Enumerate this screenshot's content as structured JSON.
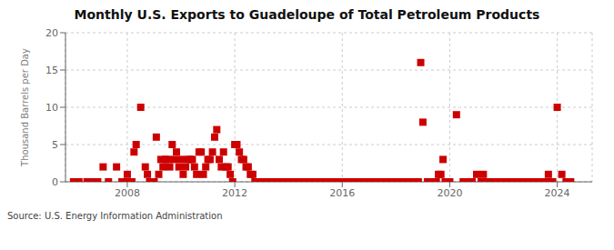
{
  "chart_data": {
    "type": "scatter",
    "title": "Monthly U.S. Exports to Guadeloupe of Total Petroleum Products",
    "y_label": "Thousand Barrels per Day",
    "annotations": [
      "Source: U.S. Energy Information Administration"
    ],
    "color": "#cc0000",
    "marker": "square",
    "grid": true,
    "xlim": [
      2005.7,
      2025.3
    ],
    "ylim": [
      0,
      20
    ],
    "xticks": [
      2008,
      2012,
      2016,
      2020,
      2024
    ],
    "yticks": [
      0,
      5,
      10,
      15,
      20
    ],
    "x": [
      2006.0,
      2006.2,
      2006.5,
      2006.7,
      2006.9,
      2007.1,
      2007.3,
      2007.6,
      2007.8,
      2007.92,
      2008.0,
      2008.08,
      2008.17,
      2008.25,
      2008.33,
      2008.5,
      2008.67,
      2008.75,
      2008.83,
      2008.92,
      2009.0,
      2009.08,
      2009.17,
      2009.25,
      2009.33,
      2009.42,
      2009.5,
      2009.58,
      2009.67,
      2009.75,
      2009.83,
      2009.92,
      2010.0,
      2010.08,
      2010.17,
      2010.25,
      2010.33,
      2010.42,
      2010.5,
      2010.58,
      2010.67,
      2010.75,
      2010.83,
      2010.92,
      2011.0,
      2011.08,
      2011.17,
      2011.25,
      2011.33,
      2011.42,
      2011.5,
      2011.58,
      2011.67,
      2011.75,
      2011.83,
      2011.92,
      2012.0,
      2012.08,
      2012.17,
      2012.25,
      2012.33,
      2012.42,
      2012.5,
      2012.58,
      2012.67,
      2012.75,
      2012.83,
      2012.92,
      2013.0,
      2013.17,
      2013.33,
      2013.5,
      2013.67,
      2013.83,
      2014.0,
      2014.17,
      2014.33,
      2014.5,
      2014.67,
      2014.83,
      2015.0,
      2015.17,
      2015.33,
      2015.5,
      2015.67,
      2015.83,
      2016.0,
      2016.17,
      2016.33,
      2016.5,
      2016.67,
      2016.83,
      2017.0,
      2017.17,
      2017.33,
      2017.5,
      2017.67,
      2017.83,
      2018.0,
      2018.17,
      2018.33,
      2018.5,
      2018.67,
      2018.83,
      2018.92,
      2019.0,
      2019.17,
      2019.33,
      2019.5,
      2019.58,
      2019.67,
      2019.75,
      2019.83,
      2019.92,
      2020.0,
      2020.25,
      2020.5,
      2020.67,
      2020.83,
      2021.0,
      2021.17,
      2021.25,
      2021.33,
      2021.5,
      2021.67,
      2021.83,
      2022.0,
      2022.17,
      2022.33,
      2022.5,
      2022.67,
      2022.83,
      2023.0,
      2023.17,
      2023.33,
      2023.5,
      2023.67,
      2023.75,
      2023.83,
      2024.0,
      2024.17,
      2024.33,
      2024.5
    ],
    "values": [
      0.0,
      0.0,
      0.0,
      0.0,
      0.0,
      2.0,
      0.0,
      2.0,
      0.0,
      0.0,
      1.0,
      0.0,
      0.0,
      4.0,
      5.0,
      10.0,
      2.0,
      1.0,
      0.0,
      0.0,
      0.0,
      6.0,
      1.0,
      3.0,
      2.0,
      3.0,
      3.0,
      2.0,
      5.0,
      3.0,
      4.0,
      2.0,
      3.0,
      1.0,
      2.0,
      3.0,
      3.0,
      3.0,
      2.0,
      1.0,
      4.0,
      4.0,
      1.0,
      2.0,
      3.0,
      3.0,
      4.0,
      6.0,
      7.0,
      3.0,
      2.0,
      4.0,
      2.0,
      2.0,
      1.0,
      0.0,
      5.0,
      5.0,
      4.0,
      3.0,
      3.0,
      2.0,
      2.0,
      1.0,
      1.0,
      0.0,
      0.0,
      0.0,
      0.0,
      0.0,
      0.0,
      0.0,
      0.0,
      0.0,
      0.0,
      0.0,
      0.0,
      0.0,
      0.0,
      0.0,
      0.0,
      0.0,
      0.0,
      0.0,
      0.0,
      0.0,
      0.0,
      0.0,
      0.0,
      0.0,
      0.0,
      0.0,
      0.0,
      0.0,
      0.0,
      0.0,
      0.0,
      0.0,
      0.0,
      0.0,
      0.0,
      0.0,
      0.0,
      0.0,
      16.0,
      8.0,
      0.0,
      0.0,
      0.0,
      1.0,
      1.0,
      3.0,
      0.0,
      0.0,
      0.0,
      9.0,
      0.0,
      0.0,
      0.0,
      1.0,
      0.0,
      1.0,
      0.0,
      0.0,
      0.0,
      0.0,
      0.0,
      0.0,
      0.0,
      0.0,
      0.0,
      0.0,
      0.0,
      0.0,
      0.0,
      0.0,
      1.0,
      0.0,
      0.0,
      10.0,
      1.0,
      0.0,
      0.0
    ]
  }
}
